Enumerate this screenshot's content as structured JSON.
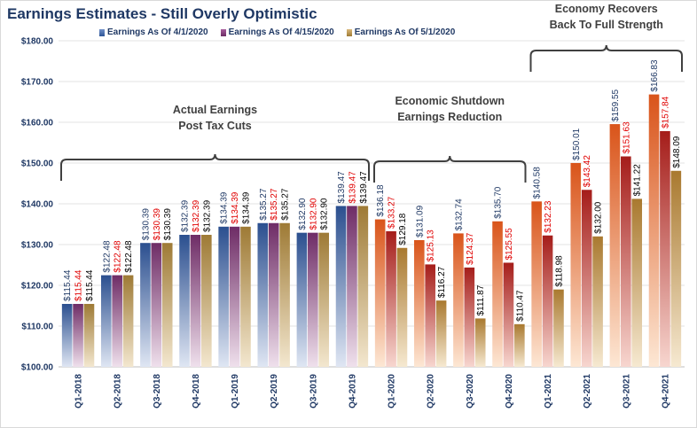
{
  "chart_data": {
    "type": "bar",
    "title": "Earnings Estimates - Still Overly Optimistic",
    "categories": [
      "Q1-2018",
      "Q2-2018",
      "Q3-2018",
      "Q4-2018",
      "Q1-2019",
      "Q2-2019",
      "Q3-2019",
      "Q4-2019",
      "Q1-2020",
      "Q2-2020",
      "Q3-2020",
      "Q4-2020",
      "Q1-2021",
      "Q2-2021",
      "Q3-2021",
      "Q4-2021"
    ],
    "series": [
      {
        "name": "Earnings As Of 4/1/2020",
        "label_color": "#1f3864",
        "values": [
          115.44,
          122.48,
          130.39,
          132.39,
          134.39,
          135.27,
          132.9,
          139.47,
          136.18,
          131.09,
          132.74,
          135.7,
          140.58,
          150.01,
          159.55,
          166.83
        ],
        "labels": [
          "$115.44",
          "$122.48",
          "$130.39",
          "$132.39",
          "$134.39",
          "$135.27",
          "$132.90",
          "$139.47",
          "$136.18",
          "$131.09",
          "$132.74",
          "$135.70",
          "$140.58",
          "$150.01",
          "$159.55",
          "$166.83"
        ]
      },
      {
        "name": "Earnings As Of 4/15/2020",
        "label_color": "#e00000",
        "values": [
          115.44,
          122.48,
          130.39,
          132.39,
          134.39,
          135.27,
          132.9,
          139.47,
          133.27,
          125.13,
          124.37,
          125.55,
          132.23,
          143.42,
          151.63,
          157.84
        ],
        "labels": [
          "$115.44",
          "$122.48",
          "$130.39",
          "$132.39",
          "$134.39",
          "$135.27",
          "$132.90",
          "$139.47",
          "$133.27",
          "$125.13",
          "$124.37",
          "$125.55",
          "$132.23",
          "$143.42",
          "$151.63",
          "$157.84"
        ]
      },
      {
        "name": "Earnings As Of 5/1/2020",
        "label_color": "#000000",
        "values": [
          115.44,
          122.48,
          130.39,
          132.39,
          134.39,
          135.27,
          132.9,
          139.47,
          129.18,
          116.27,
          111.87,
          110.47,
          118.98,
          132.0,
          141.22,
          148.09
        ],
        "labels": [
          "$115.44",
          "$122.48",
          "$130.39",
          "$132.39",
          "$134.39",
          "$135.27",
          "$132.90",
          "$139.47",
          "$129.18",
          "$116.27",
          "$111.87",
          "$110.47",
          "$118.98",
          "$132.00",
          "$141.22",
          "$148.09"
        ]
      }
    ],
    "ylim": [
      100,
      180
    ],
    "yticks": [
      100,
      110,
      120,
      130,
      140,
      150,
      160,
      170,
      180
    ],
    "ytick_labels": [
      "$100.00",
      "$110.00",
      "$120.00",
      "$130.00",
      "$140.00",
      "$150.00",
      "$160.00",
      "$170.00",
      "$180.00"
    ],
    "annotations": [
      {
        "lines": [
          "Actual Earnings",
          "Post Tax Cuts"
        ],
        "from": 0,
        "to": 7
      },
      {
        "lines": [
          "Economic Shutdown",
          "Earnings Reduction"
        ],
        "from": 8,
        "to": 11
      },
      {
        "lines": [
          "Economy Recovers",
          "Back To Full Strength"
        ],
        "from": 12,
        "to": 15
      }
    ],
    "colors": {
      "actual_s1": "#2e5597",
      "actual_s2": "#7a3572",
      "actual_s3": "#b8914a",
      "fc_s1": "#e56a1f",
      "fc_s2": "#b5261e",
      "fc_s3": "#bf8f3f"
    }
  }
}
